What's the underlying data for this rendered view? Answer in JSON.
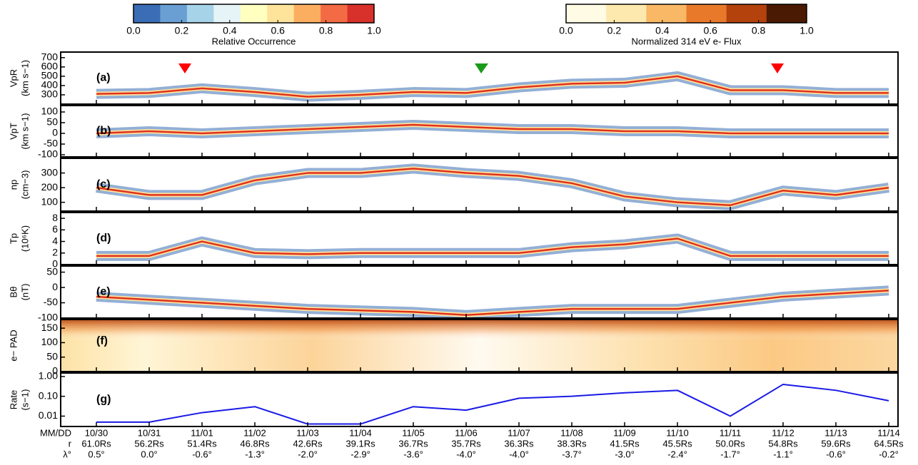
{
  "colorbars": [
    {
      "label": "Relative Occurrence",
      "colors": [
        "#3a6db5",
        "#6a9fd4",
        "#a6d3e8",
        "#e6f4f7",
        "#ffffc0",
        "#fee39a",
        "#fcae60",
        "#f26b44",
        "#d8302a"
      ],
      "ticks": [
        {
          "value": 0,
          "label": "0.0"
        },
        0.2,
        0.4,
        0.6,
        0.8,
        {
          "value": 1,
          "label": "1.0"
        }
      ]
    },
    {
      "label": "Normalized 314 eV e- Flux",
      "colors": [
        "#fffbe4",
        "#fde9ae",
        "#f9b866",
        "#e8792b",
        "#b3420d",
        "#4a1a02"
      ],
      "ticks": [
        {
          "value": 0,
          "label": "0.0"
        },
        0.2,
        0.4,
        0.6,
        0.8,
        {
          "value": 1,
          "label": "1.0"
        }
      ]
    }
  ],
  "x_axis": {
    "row_labels": [
      "MM/DD",
      "r",
      "λ°"
    ],
    "dates": [
      "10/30",
      "10/31",
      "11/01",
      "11/02",
      "11/03",
      "11/04",
      "11/05",
      "11/06",
      "11/07",
      "11/08",
      "11/09",
      "11/10",
      "11/11",
      "11/12",
      "11/13",
      "11/14"
    ],
    "r": [
      "61.0Rs",
      "56.2Rs",
      "51.4Rs",
      "46.8Rs",
      "42.6Rs",
      "39.1Rs",
      "36.7Rs",
      "35.7Rs",
      "36.3Rs",
      "38.3Rs",
      "41.5Rs",
      "45.5Rs",
      "50.0Rs",
      "54.8Rs",
      "59.6Rs",
      "64.5Rs"
    ],
    "lat": [
      "0.5°",
      "0.0°",
      "-0.6°",
      "-1.3°",
      "-2.0°",
      "-2.9°",
      "-3.6°",
      "-4.0°",
      "-4.0°",
      "-3.7°",
      "-3.0°",
      "-2.4°",
      "-1.7°",
      "-1.1°",
      "-0.6°",
      "-0.2°"
    ]
  },
  "chart_data": [
    {
      "type": "line",
      "panel": "(a)",
      "ylabel": "VpR",
      "yunit": "(km s−1)",
      "color": "#e0301e",
      "ylim": [
        200,
        760
      ],
      "yticks": [
        300,
        400,
        500,
        600,
        700
      ],
      "values": [
        310,
        320,
        370,
        330,
        280,
        300,
        330,
        320,
        380,
        420,
        430,
        500,
        350,
        350,
        320,
        320
      ]
    },
    {
      "type": "line",
      "panel": "(b)",
      "ylabel": "VpT",
      "yunit": "(km s−1)",
      "color": "#e0301e",
      "ylim": [
        -110,
        130
      ],
      "yticks": [
        -100,
        -50,
        0,
        50,
        100
      ],
      "values": [
        0,
        10,
        0,
        10,
        20,
        30,
        40,
        30,
        20,
        20,
        10,
        10,
        0,
        0,
        0,
        0
      ]
    },
    {
      "type": "line",
      "panel": "(c)",
      "ylabel": "np",
      "yunit": "(cm−3)",
      "color": "#e0301e",
      "ylim": [
        40,
        400
      ],
      "yticks": [
        100,
        200,
        300
      ],
      "values": [
        200,
        150,
        150,
        250,
        300,
        300,
        330,
        300,
        280,
        230,
        140,
        100,
        80,
        180,
        150,
        200
      ]
    },
    {
      "type": "line",
      "panel": "(d)",
      "ylabel": "Tp",
      "yunit": "(10⁶K)",
      "color": "#e0301e",
      "ylim": [
        0,
        9
      ],
      "yticks": [
        0,
        2,
        4,
        6,
        8
      ],
      "values": [
        1.5,
        1.5,
        4,
        2,
        1.8,
        2,
        2,
        2,
        2,
        3,
        3.5,
        4.5,
        1.5,
        1.5,
        1.5,
        1.5
      ]
    },
    {
      "type": "line",
      "panel": "(e)",
      "ylabel": "Bθ",
      "yunit": "(nT)",
      "color": "#e0301e",
      "ylim": [
        -100,
        70
      ],
      "yticks": [
        -100,
        -50,
        0,
        50
      ],
      "values": [
        -30,
        -40,
        -50,
        -60,
        -70,
        -75,
        -80,
        -90,
        -80,
        -70,
        -70,
        -70,
        -50,
        -30,
        -20,
        -10
      ]
    },
    {
      "type": "heatmap",
      "panel": "(f)",
      "ylabel": "e− PAD",
      "ylim": [
        0,
        180
      ],
      "yticks": [
        0,
        50,
        100,
        150
      ]
    },
    {
      "type": "line",
      "panel": "(g)",
      "ylabel": "Rate",
      "yunit": "(s−1)",
      "color": "#1a1ae6",
      "log": true,
      "ylim": [
        0.003,
        1.5
      ],
      "yticks": [
        {
          "value": 0.01,
          "label": "0.01"
        },
        {
          "value": 0.1,
          "label": "0.10"
        },
        {
          "value": 1,
          "label": "1.00"
        }
      ],
      "values": [
        0.005,
        0.005,
        0.015,
        0.03,
        0.004,
        0.004,
        0.03,
        0.02,
        0.08,
        0.1,
        0.15,
        0.2,
        0.01,
        0.4,
        0.2,
        0.06
      ]
    }
  ]
}
